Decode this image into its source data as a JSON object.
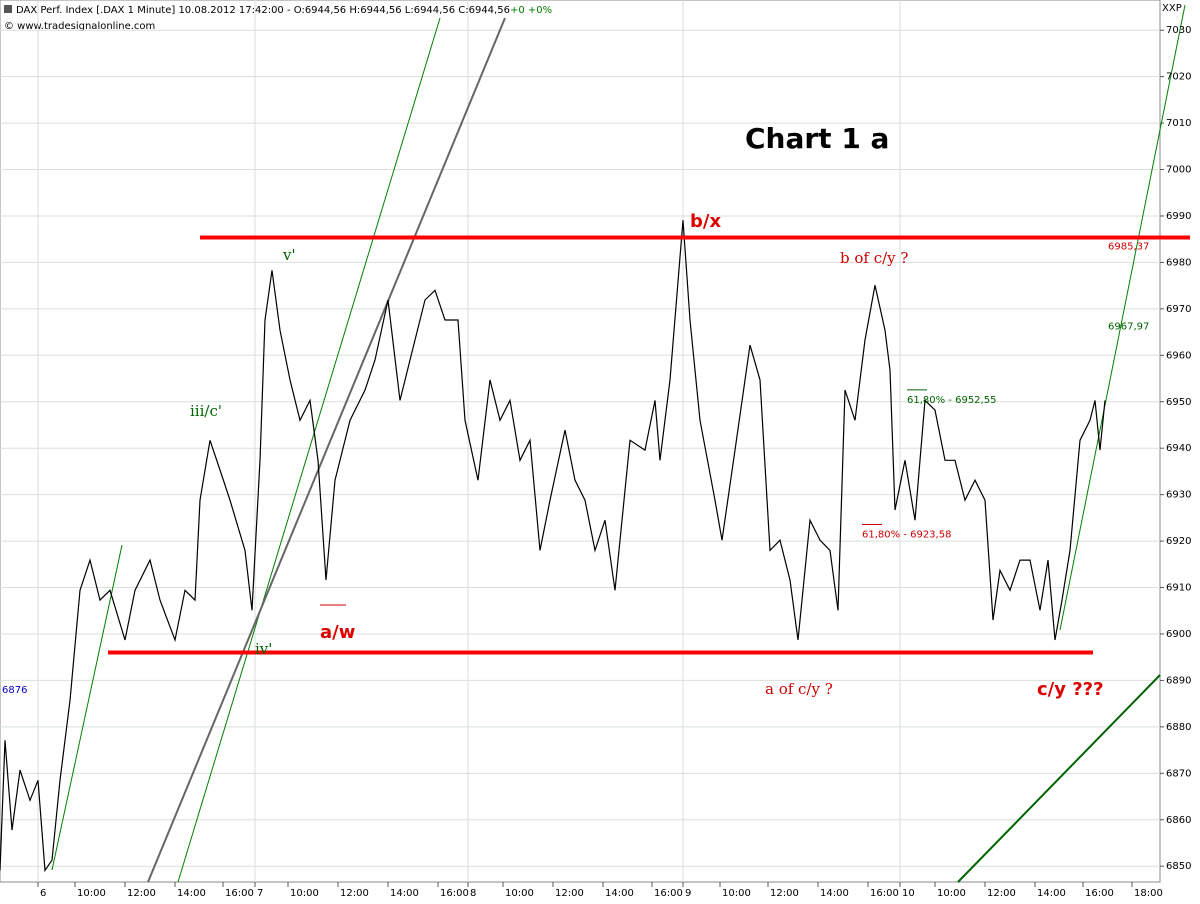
{
  "chart_data": {
    "type": "line",
    "header": "DAX Perf. Index [.DAX 1 Minute] 10.08.2012 17:42:00 - O:6944,56 H:6944,56 L:6944,56 C:6944,56",
    "change": "+0 +0%",
    "copyright": "© www.tradesignalonline.com",
    "corner": "XXP",
    "title": "Chart 1 a",
    "color": "#000000",
    "x": [
      0,
      0.2,
      0.48,
      0.8,
      1.2,
      1.52,
      1.8,
      2.08,
      2.4,
      2.8,
      3.2,
      3.6,
      4,
      4.4,
      5,
      5.4,
      6,
      6.4,
      7,
      7.4,
      7.8,
      8,
      8.4,
      8.8,
      9.2,
      9.8,
      10.08,
      10.4,
      10.6,
      10.88,
      11.2,
      11.6,
      12,
      12.4,
      12.72,
      13.04,
      13.4,
      14,
      14.6,
      15,
      15.52,
      16,
      16.4,
      17,
      17.4,
      17.8,
      18.32,
      18.6,
      19.12,
      19.6,
      20,
      20.4,
      20.8,
      21.2,
      21.6,
      22,
      22.6,
      23,
      23.4,
      23.8,
      24.2,
      24.6,
      25.2,
      25.8,
      26.2,
      26.4,
      26.8,
      27.32,
      27.6,
      28,
      28.6,
      28.88,
      29.4,
      30,
      30.4,
      30.8,
      31.2,
      31.6,
      31.92,
      32.4,
      32.8,
      33.2,
      33.52,
      33.8,
      34.2,
      34.6,
      35,
      35.4,
      35.6,
      35.8,
      36.2,
      36.6,
      37,
      37.4,
      37.8,
      38.2,
      38.6,
      39,
      39.4,
      39.72,
      40,
      40.4,
      40.8,
      41.2,
      41.6,
      41.92,
      42.2,
      42.48,
      42.8,
      43.2,
      43.6,
      43.8,
      44,
      44.2
    ],
    "values": [
      6849.1,
      6877.1,
      6857.8,
      6870.7,
      6864.2,
      6868.5,
      6849.1,
      6851.3,
      6868.5,
      6885.7,
      6909.4,
      6915.9,
      6907.3,
      6909.4,
      6898.7,
      6909.4,
      6915.9,
      6907.3,
      6898.7,
      6909.4,
      6907.3,
      6928.8,
      6941.7,
      6935.3,
      6928.8,
      6918.0,
      6905.1,
      6937.4,
      6967.6,
      6978.3,
      6965.4,
      6954.7,
      6946.0,
      6950.3,
      6937.4,
      6911.6,
      6933.1,
      6946.0,
      6952.5,
      6959.0,
      6971.9,
      6950.3,
      6959.0,
      6971.9,
      6974.0,
      6967.6,
      6967.6,
      6946.0,
      6933.1,
      6954.7,
      6946.0,
      6950.3,
      6937.4,
      6941.7,
      6918.0,
      6928.8,
      6943.9,
      6933.1,
      6928.8,
      6918.0,
      6924.5,
      6909.4,
      6941.7,
      6939.6,
      6950.3,
      6937.4,
      6954.7,
      6989.1,
      6967.6,
      6946.0,
      6928.8,
      6920.2,
      6939.6,
      6962.2,
      6954.7,
      6918.0,
      6920.2,
      6911.6,
      6898.7,
      6924.5,
      6920.2,
      6918.0,
      6905.1,
      6952.5,
      6946.0,
      6963.3,
      6975.1,
      6965.4,
      6956.8,
      6926.7,
      6937.4,
      6924.5,
      6950.3,
      6948.2,
      6937.4,
      6937.4,
      6928.8,
      6933.1,
      6928.8,
      6903.0,
      6913.7,
      6909.4,
      6915.9,
      6915.9,
      6905.1,
      6915.9,
      6898.7,
      6907.3,
      6918.0,
      6941.7,
      6946.0,
      6950.3,
      6939.6,
      6950.3
    ],
    "xlim": [
      0,
      46.4
    ],
    "xticks": [
      {
        "value": 1.52,
        "label": "6"
      },
      {
        "value": 3,
        "label": "10:00"
      },
      {
        "value": 5,
        "label": "12:00"
      },
      {
        "value": 7,
        "label": "14:00"
      },
      {
        "value": 8.92,
        "label": "16:00"
      },
      {
        "value": 10.2,
        "label": "7"
      },
      {
        "value": 11.52,
        "label": "10:00"
      },
      {
        "value": 13.52,
        "label": "12:00"
      },
      {
        "value": 15.52,
        "label": "14:00"
      },
      {
        "value": 17.52,
        "label": "16:00"
      },
      {
        "value": 18.72,
        "label": "8"
      },
      {
        "value": 20.12,
        "label": "10:00"
      },
      {
        "value": 22.12,
        "label": "12:00"
      },
      {
        "value": 24.12,
        "label": "14:00"
      },
      {
        "value": 26.08,
        "label": "16:00"
      },
      {
        "value": 27.32,
        "label": "9"
      },
      {
        "value": 28.8,
        "label": "10:00"
      },
      {
        "value": 30.72,
        "label": "12:00"
      },
      {
        "value": 32.72,
        "label": "14:00"
      },
      {
        "value": 34.72,
        "label": "16:00"
      },
      {
        "value": 36,
        "label": "10"
      },
      {
        "value": 37.4,
        "label": "10:00"
      },
      {
        "value": 39.4,
        "label": "12:00"
      },
      {
        "value": 41.4,
        "label": "14:00"
      },
      {
        "value": 43.32,
        "label": "16:00"
      },
      {
        "value": 45.28,
        "label": "18:00"
      }
    ],
    "ylim": [
      6846.6,
      7036.5
    ],
    "yticks": [
      6850,
      6860,
      6870,
      6880,
      6890,
      6900,
      6910,
      6920,
      6930,
      6940,
      6950,
      6960,
      6970,
      6980,
      6990,
      7000,
      7010,
      7020,
      7030
    ],
    "grid": true,
    "resistance": {
      "value": 6985.37,
      "label": "6985,37",
      "color": "#ff0000"
    },
    "support": {
      "value": 6896,
      "color": "#ff0000"
    },
    "price_tag": {
      "value": 6967.97,
      "label": "6967,97",
      "color": "#006400"
    },
    "fib_levels": [
      {
        "value": 6952.55,
        "label": "61,80% - 6952,55",
        "color": "#006400"
      },
      {
        "value": 6923.58,
        "label": "61,80% - 6923,58",
        "color": "#cc0000"
      }
    ],
    "annotations": [
      "v'",
      "iii/c'",
      "iv'",
      "a/w",
      "b/x",
      "b of c/y ?",
      "a of c/y ?",
      "c/y ???",
      "6876"
    ]
  }
}
